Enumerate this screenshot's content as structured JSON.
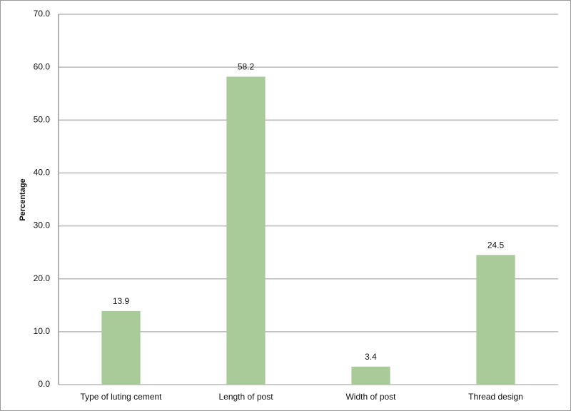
{
  "chart_data": {
    "type": "bar",
    "y_label": "Percentage",
    "categories": [
      "Type of luting cement",
      "Length of post",
      "Width of post",
      "Thread design"
    ],
    "values": [
      13.9,
      58.2,
      3.4,
      24.5
    ],
    "color": "#a9cb99",
    "ylim": [
      0,
      70
    ],
    "yticks": [
      {
        "value": 0,
        "label": "0.0"
      },
      {
        "value": 10,
        "label": "10.0"
      },
      {
        "value": 20,
        "label": "20.0"
      },
      {
        "value": 30,
        "label": "30.0"
      },
      {
        "value": 40,
        "label": "40.0"
      },
      {
        "value": 50,
        "label": "50.0"
      },
      {
        "value": 60,
        "label": "60.0"
      },
      {
        "value": 70,
        "label": "70.0"
      }
    ],
    "grid": true
  }
}
